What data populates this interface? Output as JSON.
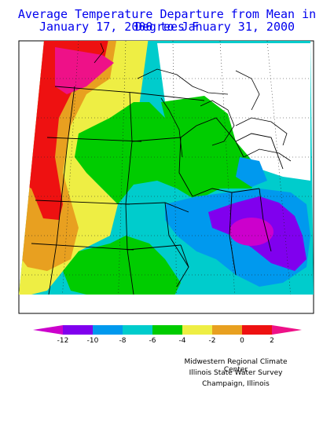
{
  "title_line1": "Average Temperature Departure from Mean in Degrees F",
  "title_line2": "January 17, 2000 to January 31, 2000",
  "legend": {
    "colors": [
      "#cc00cc",
      "#8000ee",
      "#0099ee",
      "#00cccc",
      "#00cc00",
      "#eeee44",
      "#e8a020",
      "#ee1111",
      "#ee1188"
    ],
    "ticks": [
      "-12",
      "-10",
      "-8",
      "-6",
      "-4",
      "-2",
      "0",
      "2"
    ]
  },
  "credits": {
    "line1": "Midwestern Regional Climate Center",
    "line2": "Illinois State Water Survey",
    "line3": "Champaign, Illinois"
  }
}
